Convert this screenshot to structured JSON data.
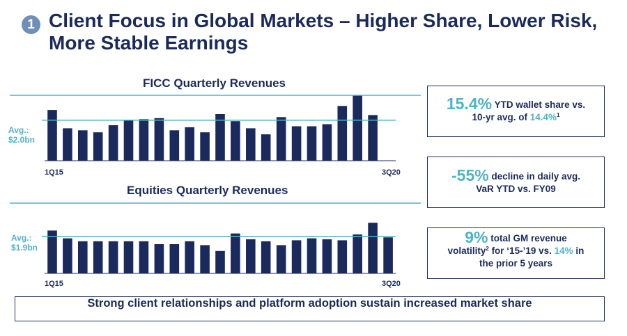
{
  "header": {
    "badge": "1",
    "title_line1": "Client Focus in Global Markets – Higher Share, Lower Risk,",
    "title_line2": "More Stable Earnings"
  },
  "chart_data": [
    {
      "type": "bar",
      "title": "FICC Quarterly Revenues",
      "avg_label_line1": "Avg.:",
      "avg_label_line2": "$2.0bn",
      "average": 2.0,
      "ylim": [
        0,
        3.5
      ],
      "tick_start": "1Q15",
      "tick_end": "3Q20",
      "categories": [
        "1Q15",
        "2Q15",
        "3Q15",
        "4Q15",
        "1Q16",
        "2Q16",
        "3Q16",
        "4Q16",
        "1Q17",
        "2Q17",
        "3Q17",
        "4Q17",
        "1Q18",
        "2Q18",
        "3Q18",
        "4Q18",
        "1Q19",
        "2Q19",
        "3Q19",
        "4Q19",
        "1Q20",
        "2Q20",
        "3Q20"
      ],
      "values": [
        2.5,
        1.6,
        1.5,
        1.4,
        1.75,
        2.0,
        2.05,
        2.1,
        1.5,
        1.65,
        1.4,
        2.3,
        1.95,
        1.6,
        1.3,
        2.15,
        1.7,
        1.7,
        1.8,
        2.7,
        3.2,
        2.25,
        0
      ]
    },
    {
      "type": "bar",
      "title": "Equities Quarterly Revenues",
      "avg_label_line1": "Avg.:",
      "avg_label_line2": "$1.9bn",
      "average": 1.9,
      "ylim": [
        0,
        3.0
      ],
      "tick_start": "1Q15",
      "tick_end": "3Q20",
      "categories": [
        "1Q15",
        "2Q15",
        "3Q15",
        "4Q15",
        "1Q16",
        "2Q16",
        "3Q16",
        "4Q16",
        "1Q17",
        "2Q17",
        "3Q17",
        "4Q17",
        "1Q18",
        "2Q18",
        "3Q18",
        "4Q18",
        "1Q19",
        "2Q19",
        "3Q19",
        "4Q19",
        "1Q20",
        "2Q20",
        "3Q20"
      ],
      "values": [
        2.2,
        1.8,
        1.65,
        1.65,
        1.65,
        1.65,
        1.65,
        1.5,
        1.5,
        1.65,
        1.45,
        1.15,
        2.05,
        1.75,
        1.65,
        1.45,
        1.7,
        1.8,
        1.75,
        1.7,
        2.0,
        2.6,
        1.85
      ]
    }
  ],
  "stats": [
    {
      "big": "15.4%",
      "text1": " YTD wallet share vs.",
      "text2": "10-yr avg. of ",
      "highlight": "14.4%",
      "sup": "1"
    },
    {
      "big": "-55%",
      "text1": " decline in daily avg.",
      "text2": "VaR YTD vs. FY09"
    },
    {
      "big": "9%",
      "text1": " total GM revenue",
      "text2a": "volatility",
      "sup": "2",
      "text2b": " for ‘15-’19 vs. ",
      "highlight": "14%",
      "text2c": " in",
      "text3": "the prior 5 years"
    }
  ],
  "footer": "Strong client relationships and platform adoption sustain increased market share",
  "colors": {
    "navy": "#1b2a5c",
    "teal": "#4fb3c6",
    "badge": "#6d8fb8"
  }
}
